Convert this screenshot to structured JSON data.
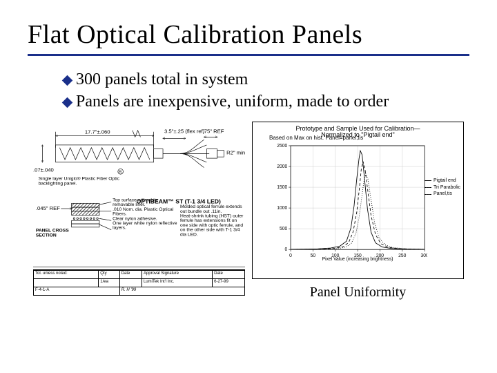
{
  "colors": {
    "rule": "#1a2f8a",
    "bullet_marker": "#1a2f8a",
    "text": "#000000",
    "chart_grid": "#cccccc",
    "chart_axis": "#000000",
    "background": "#ffffff"
  },
  "title": "Flat Optical Calibration Panels",
  "bullets": [
    "300 panels total in system",
    "Panels are inexpensive, uniform, made to order"
  ],
  "left_diagram": {
    "dims": {
      "width": "17.7\"±.060",
      "panel_thickness": "3.5\"±.25 (flex ref)",
      "fiber_stub": ".75\" REF",
      "fiber_bend": "R2\" min",
      "front_layer": ".045\" REF",
      "cable_od": ".07±.040"
    },
    "product": "OPTIBEAM™ ST (T-1 3/4 LED)",
    "section_label": "PANEL CROSS SECTION",
    "front_note": "Single layer Uniglo® Plastic Fiber Optic backlighting panel.",
    "section_notes": [
      "Top surface with white removable liner.",
      ".010 Nom. dia. Plastic Optical Fibers.",
      "Clear nylon adhesive.",
      "One layer white nylon reflective layers."
    ],
    "product_notes": [
      "Molded optical ferrule extends out bundle out .11in.",
      "Heat-shrink tubing (HST) outer ferrule has extensions fit on one side with optic ferrule, and on the other side with T-1 3/4 dia LED."
    ],
    "title_block": {
      "rows": [
        [
          "Tol. unless noted:",
          "Qty",
          "Date",
          "Approval Signature",
          "Date"
        ],
        [
          "",
          "1/ea",
          "",
          "LumiTek Int'l Inc.",
          "6-27-99"
        ],
        [
          "",
          "F-4-1-A",
          "",
          "",
          ""
        ]
      ],
      "signature_scribble": "R. H '99"
    }
  },
  "right_chart": {
    "type": "line",
    "title": "Prototype and Sample Used for Calibration—",
    "subtitle": "Normalized to \"Pigtail end\"",
    "corner_note": "Based on Max on hist. Panel=panel,tis",
    "xlabel": "Pixel Value (increasing brightness)",
    "ylabel": "",
    "xlim": [
      0,
      300
    ],
    "ylim": [
      0,
      2500
    ],
    "xticks": [
      0,
      50,
      100,
      150,
      200,
      250,
      300
    ],
    "yticks": [
      0,
      500,
      1000,
      1500,
      2000,
      2500
    ],
    "grid": true,
    "series": [
      {
        "name": "Pigtail end",
        "color": "#000000",
        "dash": "",
        "points": [
          [
            0,
            5
          ],
          [
            30,
            8
          ],
          [
            60,
            15
          ],
          [
            90,
            35
          ],
          [
            110,
            80
          ],
          [
            125,
            200
          ],
          [
            135,
            520
          ],
          [
            142,
            1050
          ],
          [
            148,
            1700
          ],
          [
            153,
            2180
          ],
          [
            156,
            2380
          ],
          [
            160,
            2280
          ],
          [
            165,
            1750
          ],
          [
            172,
            980
          ],
          [
            180,
            420
          ],
          [
            190,
            160
          ],
          [
            205,
            60
          ],
          [
            225,
            25
          ],
          [
            260,
            10
          ],
          [
            300,
            5
          ]
        ]
      },
      {
        "name": "Tri Parabolic",
        "color": "#000000",
        "dash": "4 3",
        "points": [
          [
            0,
            5
          ],
          [
            35,
            6
          ],
          [
            70,
            12
          ],
          [
            100,
            28
          ],
          [
            118,
            70
          ],
          [
            130,
            170
          ],
          [
            140,
            430
          ],
          [
            148,
            900
          ],
          [
            154,
            1480
          ],
          [
            158,
            1920
          ],
          [
            162,
            2120
          ],
          [
            166,
            1980
          ],
          [
            172,
            1480
          ],
          [
            180,
            820
          ],
          [
            190,
            360
          ],
          [
            202,
            140
          ],
          [
            218,
            55
          ],
          [
            240,
            22
          ],
          [
            270,
            10
          ],
          [
            300,
            5
          ]
        ]
      },
      {
        "name": "Panel,tis",
        "color": "#000000",
        "dash": "1 2",
        "points": [
          [
            0,
            4
          ],
          [
            40,
            5
          ],
          [
            80,
            10
          ],
          [
            108,
            24
          ],
          [
            124,
            60
          ],
          [
            136,
            150
          ],
          [
            146,
            380
          ],
          [
            153,
            760
          ],
          [
            159,
            1240
          ],
          [
            164,
            1640
          ],
          [
            168,
            1830
          ],
          [
            173,
            1700
          ],
          [
            180,
            1200
          ],
          [
            188,
            640
          ],
          [
            198,
            280
          ],
          [
            212,
            110
          ],
          [
            230,
            45
          ],
          [
            255,
            18
          ],
          [
            300,
            6
          ]
        ]
      }
    ]
  },
  "right_caption": "Panel Uniformity"
}
